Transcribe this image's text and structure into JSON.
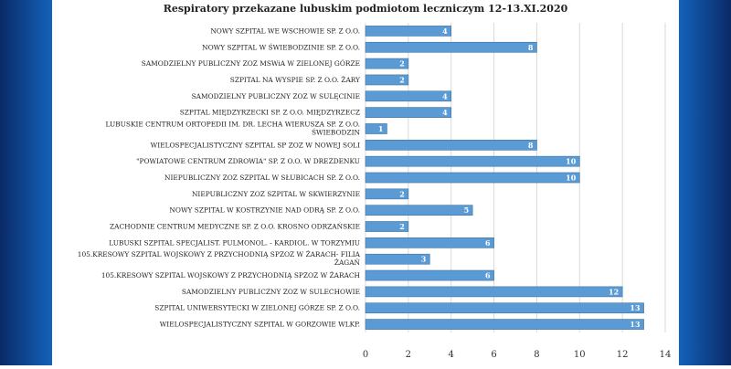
{
  "chart_data": {
    "type": "bar",
    "orientation": "horizontal",
    "title": "Respiratory przekazane lubuskim podmiotom leczniczym 12-13.XI.2020",
    "xlabel": "",
    "ylabel": "",
    "xlim": [
      0,
      14
    ],
    "x_ticks": [
      0,
      2,
      4,
      6,
      8,
      10,
      12,
      14
    ],
    "grid": true,
    "legend": "none",
    "bar_color": "#5b9bd5",
    "categories": [
      "NOWY SZPITAL WE WSCHOWIE SP. Z O.O.",
      "NOWY SZPITAL W ŚWIEBODZINIE SP. Z O.O.",
      "SAMODZIELNY PUBLICZNY ZOZ MSWiA W ZIELONEJ GÓRZE",
      "SZPITAL NA WYSPIE SP. Z O.O. ŻARY",
      "SAMODZIELNY PUBLICZNY ZOZ W SULĘCINIE",
      "SZPITAL MIĘDZYRZECKI SP. Z O.O. MIĘDZYRZECZ",
      "LUBUSKIE CENTRUM ORTOPEDII IM. DR. LECHA WIERUSZA SP. Z O.O. ŚWIEBODZIN",
      "WIELOSPECJALISTYCZNY SZPITAL SP ZOZ W NOWEJ SOLI",
      "\"POWIATOWE CENTRUM ZDROWIA\" SP. Z O.O. W DREZDENKU",
      "NIEPUBLICZNY ZOZ SZPITAL W SŁUBICACH SP. Z O.O.",
      "NIEPUBLICZNY ZOZ SZPITAL W SKWIERZYNIE",
      "NOWY SZPITAL W KOSTRZYNIE NAD ODRĄ SP. Z O.O.",
      "ZACHODNIE CENTRUM MEDYCZNE SP. Z O.O. KROSNO ODRZAŃSKIE",
      "LUBUSKI SZPITAL SPECJALIST. PULMONOL. - KARDIOL. W TORZYMIU",
      "105.KRESOWY SZPITAL WOJSKOWY Z PRZYCHODNIĄ SPZOZ W ŻARACH- FILIA ŻAGAŃ",
      "105.KRESOWY SZPITAL WOJSKOWY Z PRZYCHODNIĄ SPZOZ W ŻARACH",
      "SAMODZIELNY PUBLICZNY ZOZ W SULECHOWIE",
      "SZPITAL UNIWERSYTECKI W ZIELONEJ GÓRZE SP. Z O.O.",
      "WIELOSPECJALISTYCZNY SZPITAL W GORZOWIE WLKP."
    ],
    "values": [
      4,
      8,
      2,
      2,
      4,
      4,
      1,
      8,
      10,
      10,
      2,
      5,
      2,
      6,
      3,
      6,
      12,
      13,
      13
    ]
  }
}
